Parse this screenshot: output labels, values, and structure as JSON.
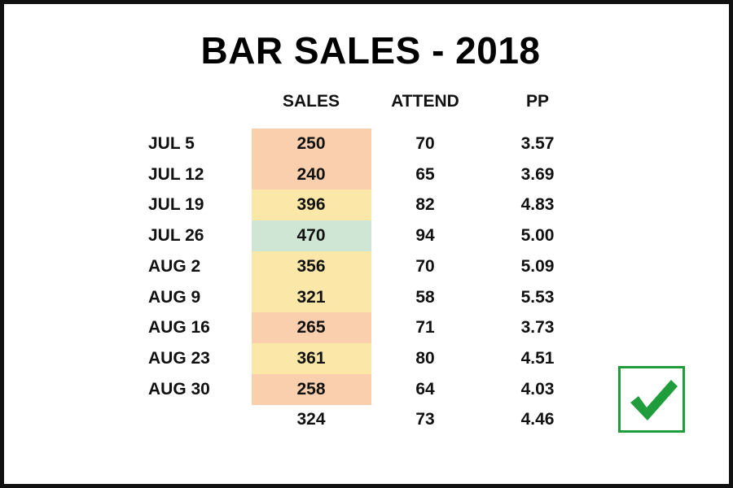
{
  "chart_data": {
    "type": "table",
    "title": "BAR SALES - 2018",
    "columns": [
      "SALES",
      "ATTEND",
      "PP"
    ],
    "rows": [
      {
        "label": "JUL 5",
        "sales": "250",
        "attend": "70",
        "pp": "3.57",
        "highlight": "#f9cfad"
      },
      {
        "label": "JUL 12",
        "sales": "240",
        "attend": "65",
        "pp": "3.69",
        "highlight": "#f9cfad"
      },
      {
        "label": "JUL 19",
        "sales": "396",
        "attend": "82",
        "pp": "4.83",
        "highlight": "#fbe7a7"
      },
      {
        "label": "JUL 26",
        "sales": "470",
        "attend": "94",
        "pp": "5.00",
        "highlight": "#cfe6d4"
      },
      {
        "label": "AUG 2",
        "sales": "356",
        "attend": "70",
        "pp": "5.09",
        "highlight": "#fbe7a7"
      },
      {
        "label": "AUG 9",
        "sales": "321",
        "attend": "58",
        "pp": "5.53",
        "highlight": "#fbe7a7"
      },
      {
        "label": "AUG 16",
        "sales": "265",
        "attend": "71",
        "pp": "3.73",
        "highlight": "#f9cfad"
      },
      {
        "label": "AUG 23",
        "sales": "361",
        "attend": "80",
        "pp": "4.51",
        "highlight": "#fbe7a7"
      },
      {
        "label": "AUG 30",
        "sales": "258",
        "attend": "64",
        "pp": "4.03",
        "highlight": "#f9cfad"
      }
    ],
    "summary": {
      "sales": "324",
      "attend": "73",
      "pp": "4.46"
    }
  },
  "colors": {
    "low": "#f9cfad",
    "mid": "#fbe7a7",
    "high": "#cfe6d4",
    "check": "#1f9d3c"
  },
  "icons": {
    "checkmark": "green-checkmark-icon"
  }
}
